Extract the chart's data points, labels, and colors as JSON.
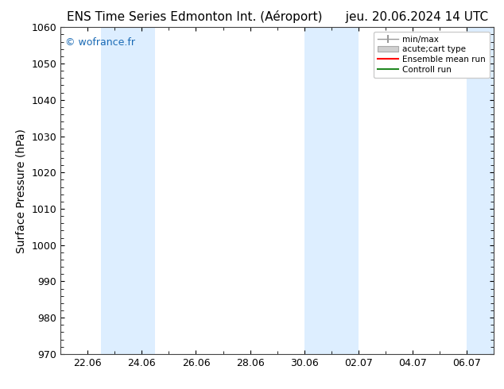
{
  "title": "ENS Time Series Edmonton Int. (Aéroport)      jeu. 20.06.2024 14 UTC",
  "ylabel": "Surface Pressure (hPa)",
  "ylim": [
    970,
    1060
  ],
  "yticks": [
    970,
    980,
    990,
    1000,
    1010,
    1020,
    1030,
    1040,
    1050,
    1060
  ],
  "xtick_labels": [
    "22.06",
    "24.06",
    "26.06",
    "28.06",
    "30.06",
    "02.07",
    "04.07",
    "06.07"
  ],
  "xtick_positions": [
    2,
    4,
    6,
    8,
    10,
    12,
    14,
    16
  ],
  "xlim": [
    1.0,
    17.0
  ],
  "background_color": "#ffffff",
  "shaded_bands": [
    {
      "x_start": 2.5,
      "x_end": 4.5,
      "color": "#ddeeff"
    },
    {
      "x_start": 10.0,
      "x_end": 12.0,
      "color": "#ddeeff"
    },
    {
      "x_start": 16.0,
      "x_end": 17.0,
      "color": "#ddeeff"
    }
  ],
  "watermark": "© wofrance.fr",
  "watermark_color": "#1a6ab5",
  "legend_entries": [
    {
      "label": "min/max",
      "color": "#aaaaaa",
      "type": "errorbar"
    },
    {
      "label": "acute;cart type",
      "color": "#cccccc",
      "type": "fill"
    },
    {
      "label": "Ensemble mean run",
      "color": "#ff0000",
      "type": "line"
    },
    {
      "label": "Controll run",
      "color": "#008800",
      "type": "line"
    }
  ],
  "title_fontsize": 11,
  "axis_label_fontsize": 10,
  "tick_fontsize": 9,
  "watermark_fontsize": 9
}
